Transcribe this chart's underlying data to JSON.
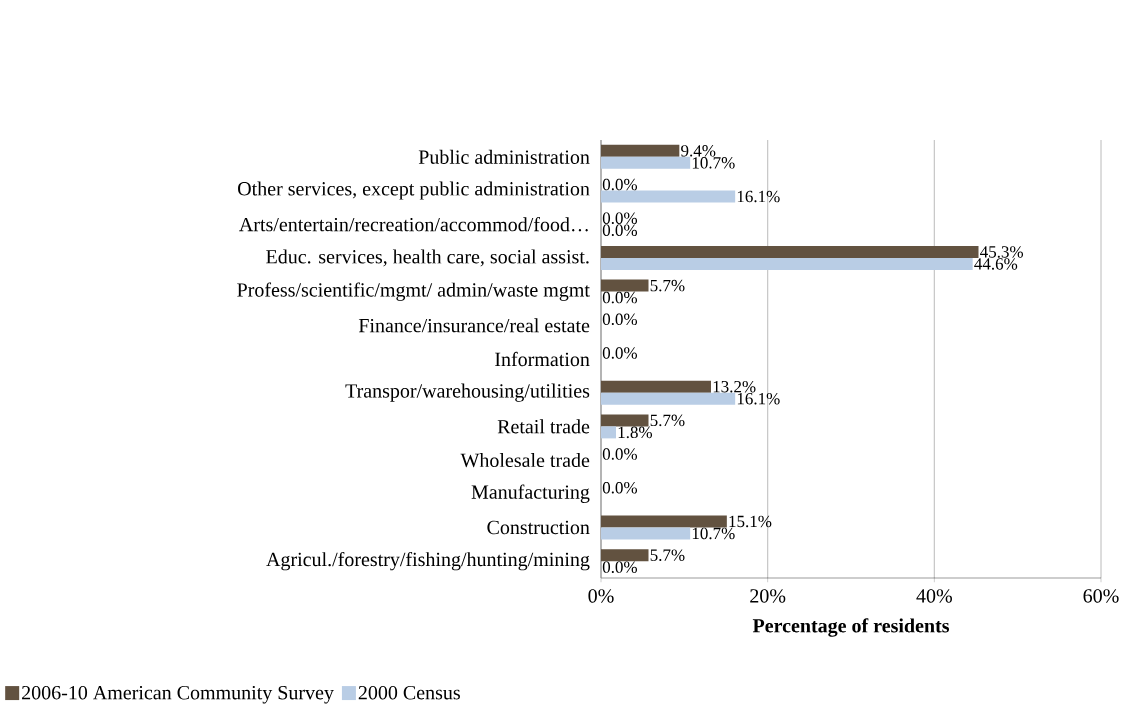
{
  "chart_data": {
    "type": "bar",
    "orientation": "horizontal",
    "categories": [
      "Public administration",
      "Other services, except public administration",
      "Arts/entertain/recreation/accommod/food…",
      "Educ. services, health care, social assist.",
      "Profess/scientific/mgmt/ admin/waste mgmt",
      "Finance/insurance/real estate",
      "Information",
      "Transpor/warehousing/utilities",
      "Retail trade",
      "Wholesale trade",
      "Manufacturing",
      "Construction",
      "Agricul./forestry/fishing/hunting/mining"
    ],
    "series": [
      {
        "name": "2006-10 American Community Survey",
        "color": "#625240",
        "values": [
          9.4,
          0.0,
          0.0,
          45.3,
          5.7,
          0.0,
          0.0,
          13.2,
          5.7,
          0.0,
          0.0,
          15.1,
          5.7
        ],
        "value_labels": [
          "9.4%",
          "0.0%",
          "0.0%",
          "45.3%",
          "5.7%",
          "0.0%",
          "0.0%",
          "13.2%",
          "5.7%",
          "0.0%",
          "0.0%",
          "15.1%",
          "5.7%"
        ]
      },
      {
        "name": "2000 Census",
        "color": "#b9cde5",
        "values": [
          10.7,
          16.1,
          0.0,
          44.6,
          0.0,
          0.0,
          0.0,
          16.1,
          1.8,
          0.0,
          0.0,
          10.7,
          0.0
        ],
        "value_labels": [
          "10.7%",
          "16.1%",
          "0.0%",
          "44.6%",
          "0.0%",
          null,
          null,
          "16.1%",
          "1.8%",
          null,
          null,
          "10.7%",
          "0.0%"
        ]
      }
    ],
    "xlabel": "Percentage of residents",
    "xlim": [
      0,
      60
    ],
    "xticks": [
      {
        "value": 0,
        "label": "0%"
      },
      {
        "value": 20,
        "label": "20%"
      },
      {
        "value": 40,
        "label": "40%"
      },
      {
        "value": 60,
        "label": "60%"
      }
    ],
    "grid": "x",
    "legend": "bottom"
  }
}
